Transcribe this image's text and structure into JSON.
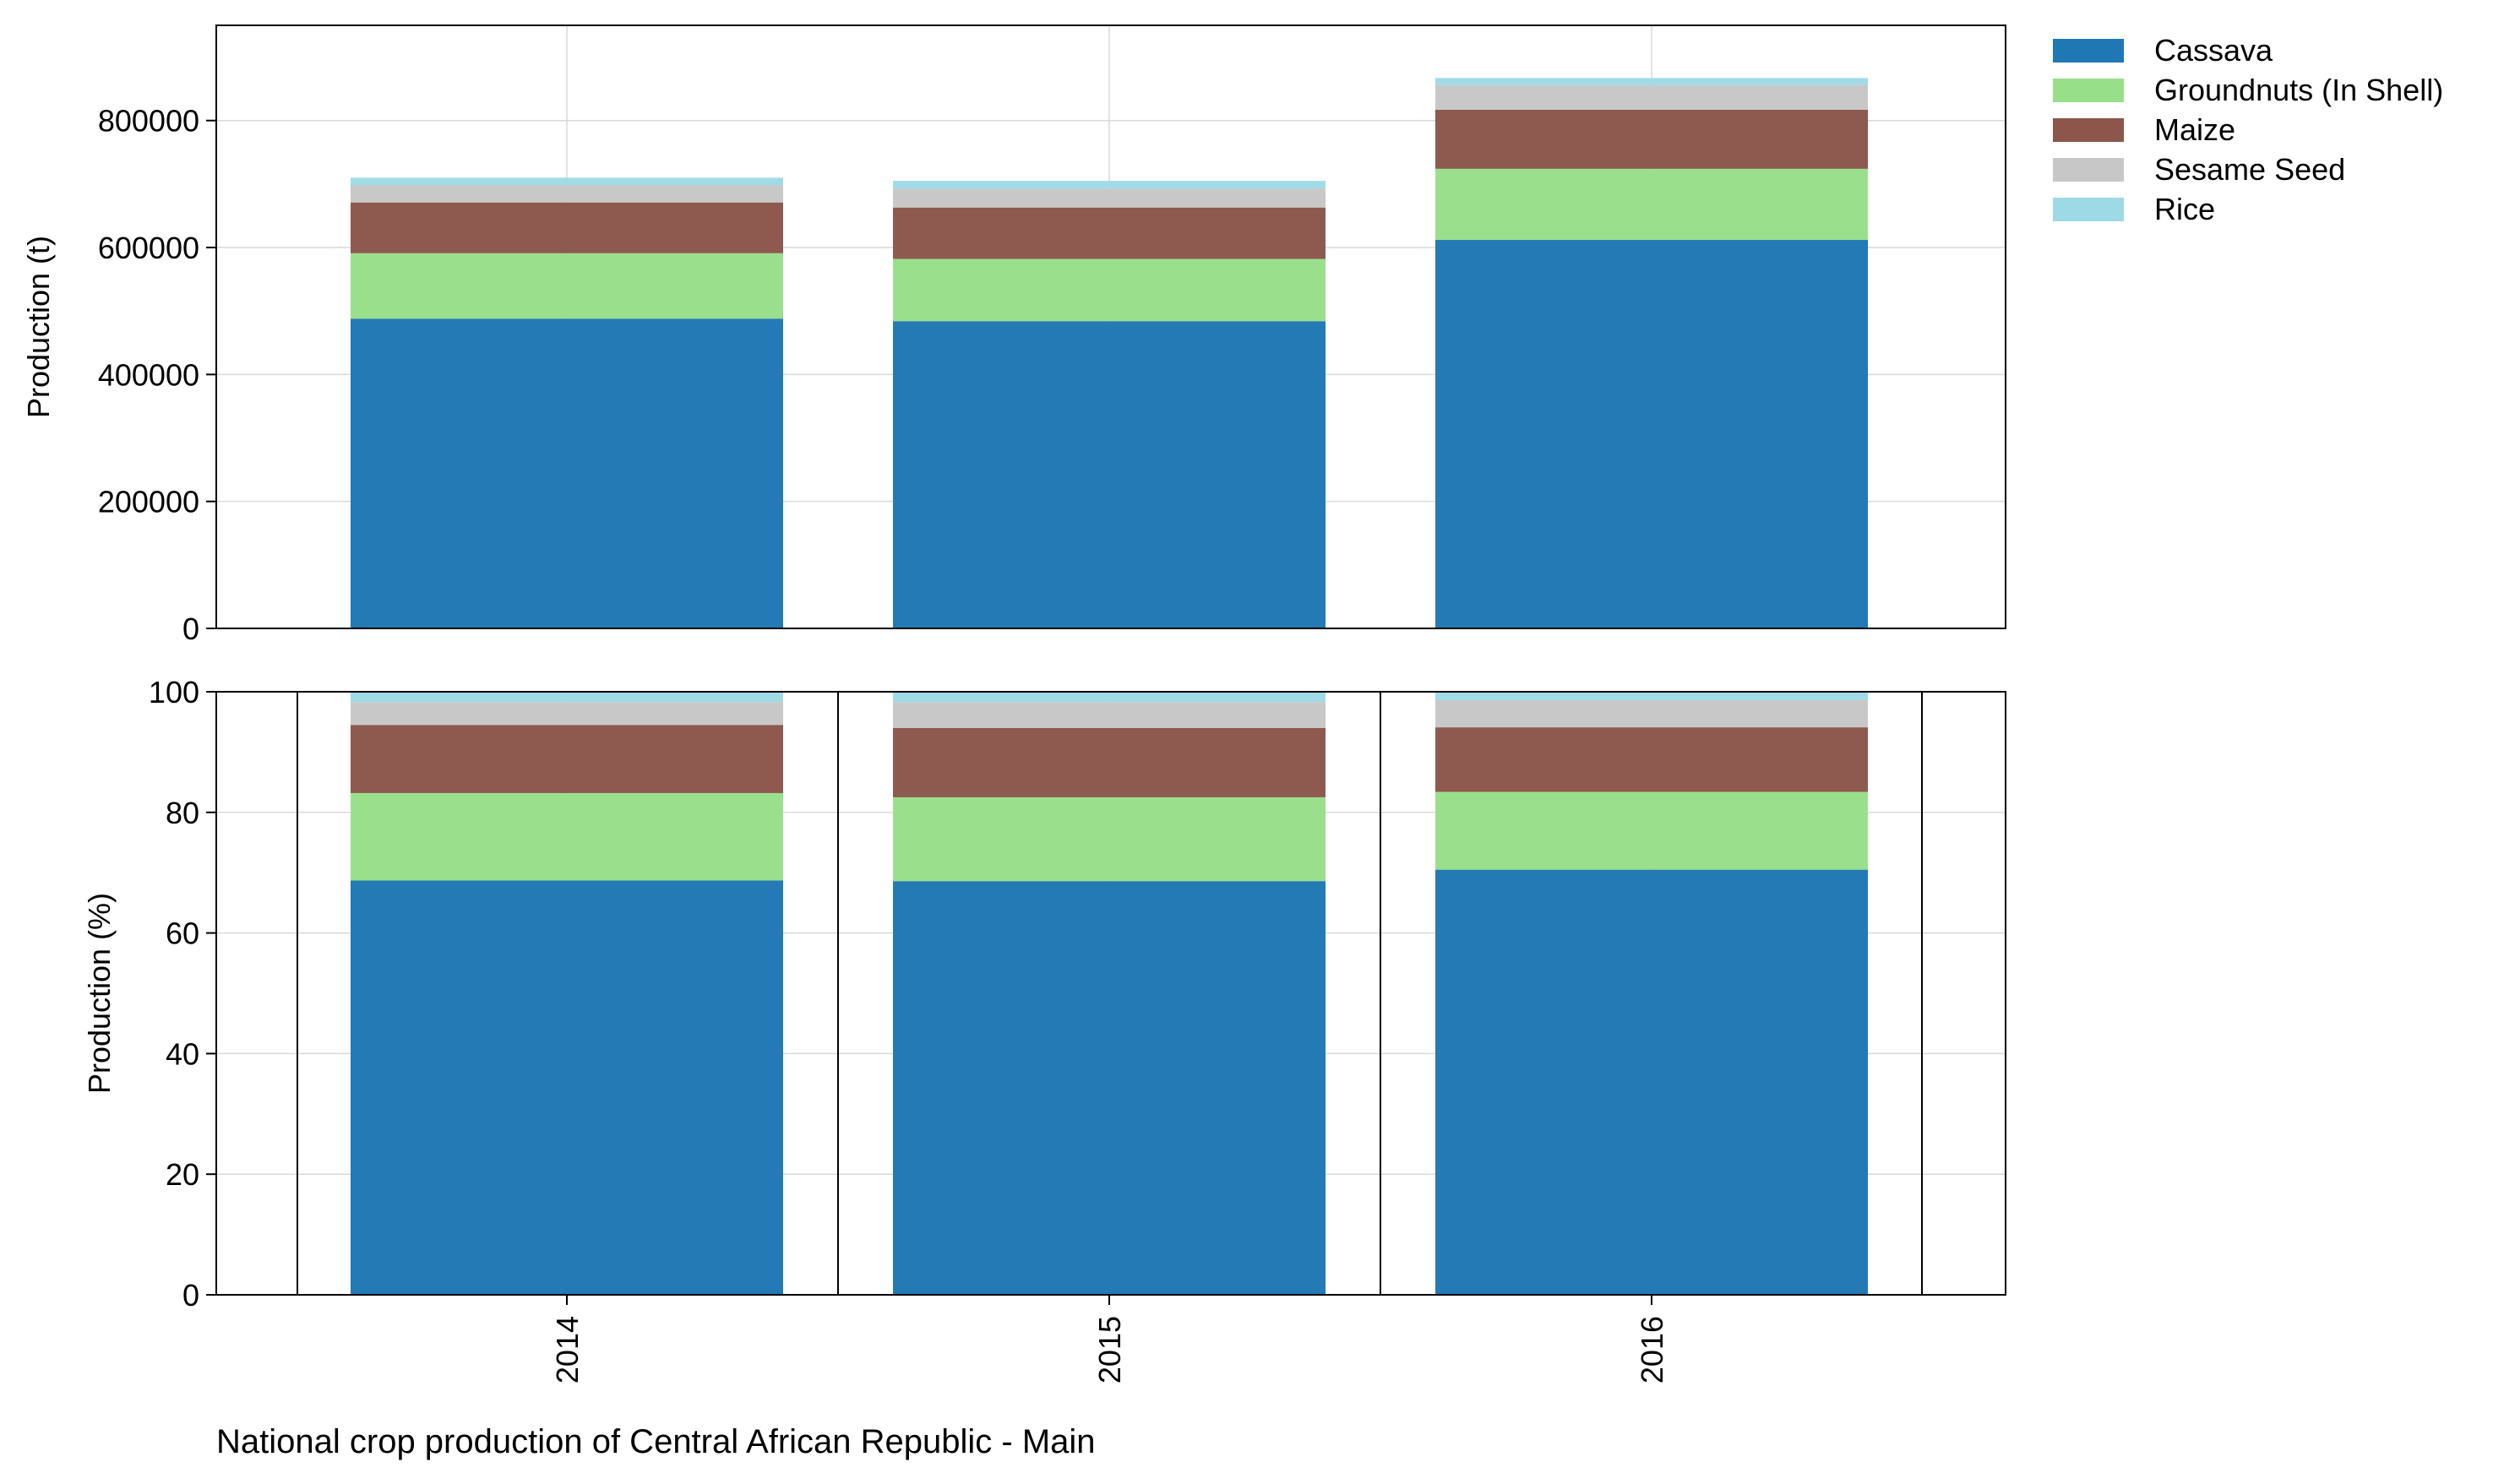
{
  "caption": "National crop production of Central African Republic - Main",
  "chart_data": [
    {
      "type": "bar",
      "stacked": true,
      "ylabel": "Production (t)",
      "ylim": [
        0,
        950000
      ],
      "yticks": [
        "0",
        "200000",
        "400000",
        "600000",
        "800000"
      ],
      "categories": [
        "2014",
        "2015",
        "2016"
      ],
      "grid": true,
      "legend": "outside-right",
      "series": [
        {
          "name": "Cassava",
          "color": "#1f77b4",
          "values": [
            488000,
            484000,
            612000
          ]
        },
        {
          "name": "Groundnuts (In Shell)",
          "color": "#98df8a",
          "values": [
            103000,
            98000,
            112000
          ]
        },
        {
          "name": "Maize",
          "color": "#8c564b",
          "values": [
            80000,
            81000,
            93000
          ]
        },
        {
          "name": "Sesame Seed",
          "color": "#c7c7c7",
          "values": [
            27000,
            30000,
            39000
          ]
        },
        {
          "name": "Rice",
          "color": "#9edae5",
          "values": [
            12000,
            12000,
            11000
          ]
        }
      ]
    },
    {
      "type": "bar",
      "stacked": true,
      "ylabel": "Production (%)",
      "ylim": [
        0,
        100
      ],
      "yticks": [
        "0",
        "20",
        "40",
        "60",
        "80",
        "100"
      ],
      "categories": [
        "2014",
        "2015",
        "2016"
      ],
      "grid": true,
      "series": [
        {
          "name": "Cassava",
          "color": "#1f77b4",
          "values": [
            68.7,
            68.6,
            70.5
          ]
        },
        {
          "name": "Groundnuts (In Shell)",
          "color": "#98df8a",
          "values": [
            14.5,
            13.9,
            12.9
          ]
        },
        {
          "name": "Maize",
          "color": "#8c564b",
          "values": [
            11.3,
            11.5,
            10.7
          ]
        },
        {
          "name": "Sesame Seed",
          "color": "#c7c7c7",
          "values": [
            3.8,
            4.3,
            4.5
          ]
        },
        {
          "name": "Rice",
          "color": "#9edae5",
          "values": [
            1.7,
            1.7,
            1.4
          ]
        }
      ]
    }
  ]
}
